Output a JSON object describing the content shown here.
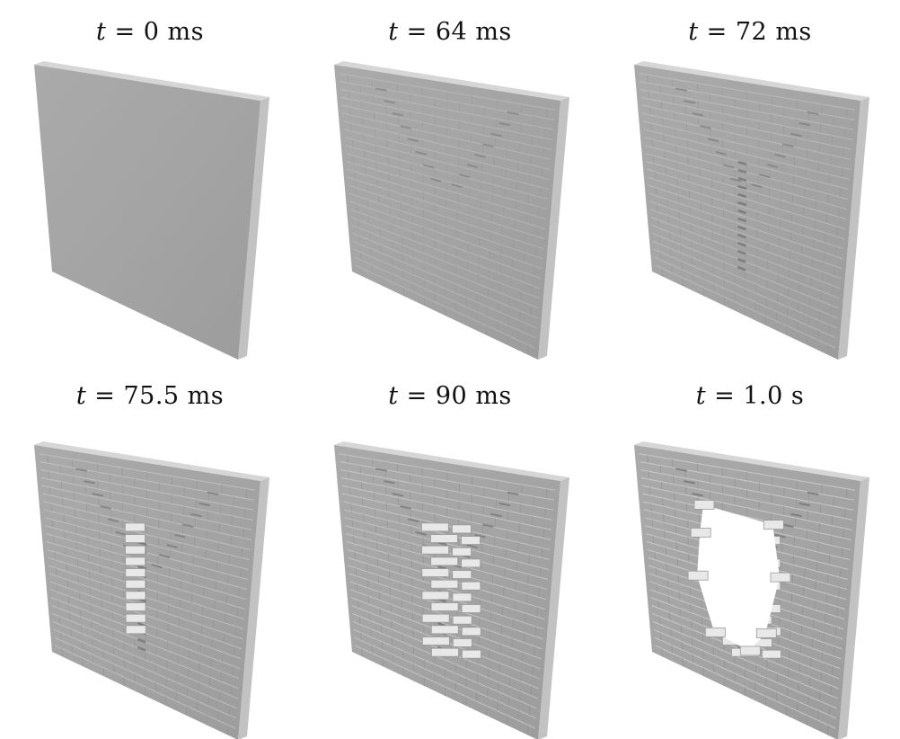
{
  "panels": [
    {
      "time_label": "= 0 ms",
      "variable": "t",
      "stage": "intact"
    },
    {
      "time_label": "= 64 ms",
      "variable": "t",
      "stage": "cracks-forming"
    },
    {
      "time_label": "= 72 ms",
      "variable": "t",
      "stage": "cracks-spreading"
    },
    {
      "time_label": "= 75.5 ms",
      "variable": "t",
      "stage": "bulging"
    },
    {
      "time_label": "= 90 ms",
      "variable": "t",
      "stage": "blocks-ejecting"
    },
    {
      "time_label": "= 1.0 s",
      "variable": "t",
      "stage": "breach-hole"
    }
  ],
  "colors": {
    "wall_face": "#a4a4a4",
    "wall_top": "#d6d6d6",
    "wall_side": "#c2c2c2",
    "mortar_light": "#d2d2d2",
    "mortar_dark": "#8a8a8a",
    "ejected_block": "#e8e8e8"
  }
}
